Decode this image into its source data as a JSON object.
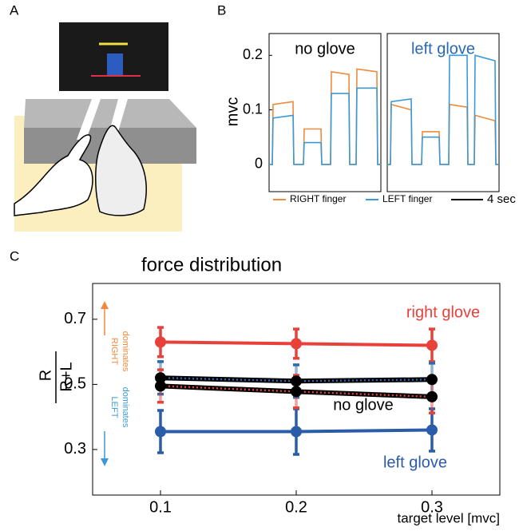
{
  "panel_labels": [
    "A",
    "B",
    "C"
  ],
  "chart_data": [
    {
      "type": "line",
      "title": "no glove",
      "title_color": "#000000",
      "y_label": "mvc",
      "x": [
        0,
        0.4,
        0.5,
        3.0,
        3.1,
        4.3,
        4.4,
        6.5,
        6.6,
        7.7,
        7.8,
        10.0,
        10.1,
        10.9,
        11.0,
        13.5,
        13.6,
        14.0
      ],
      "xlim": [
        0,
        14
      ],
      "ylim": [
        -0.05,
        0.24
      ],
      "yticks": [
        0,
        0.1,
        0.2
      ],
      "series": [
        {
          "name": "RIGHT finger",
          "color": "#f08a3c",
          "values": [
            0,
            0,
            0.11,
            0.115,
            0,
            0,
            0.065,
            0.065,
            0,
            0,
            0.17,
            0.165,
            0,
            0,
            0.175,
            0.17,
            0,
            0
          ]
        },
        {
          "name": "LEFT finger",
          "color": "#3b9ad6",
          "values": [
            0,
            0,
            0.085,
            0.09,
            0,
            0,
            0.04,
            0.04,
            0,
            0,
            0.13,
            0.13,
            0,
            0,
            0.14,
            0.14,
            0,
            0
          ]
        }
      ]
    },
    {
      "type": "line",
      "title": "left glove",
      "title_color": "#2a6ab3",
      "x": [
        0,
        0.4,
        0.5,
        3.0,
        3.1,
        4.3,
        4.4,
        6.5,
        6.6,
        7.7,
        7.8,
        10.0,
        10.1,
        10.9,
        11.0,
        13.5,
        13.6,
        14.0
      ],
      "xlim": [
        0,
        14
      ],
      "ylim": [
        -0.05,
        0.24
      ],
      "scalebar": {
        "length": 4,
        "label": "4 sec"
      },
      "series": [
        {
          "color": "#f08a3c",
          "values": [
            0,
            0,
            0.11,
            0.1,
            0,
            0,
            0.06,
            0.06,
            0,
            0,
            0.11,
            0.105,
            0,
            0,
            0.09,
            0.08,
            0,
            0
          ]
        },
        {
          "color": "#3b9ad6",
          "values": [
            0,
            0,
            0.115,
            0.12,
            0,
            0,
            0.05,
            0.05,
            0,
            0,
            0.2,
            0.2,
            0,
            0,
            0.2,
            0.19,
            0,
            0
          ]
        }
      ]
    },
    {
      "type": "errorline",
      "title": "force distribution",
      "y_label": [
        "R",
        "R+L"
      ],
      "x_label": "target level [mvc]",
      "annotation": "no glove",
      "side_notes": {
        "up": [
          "RIGHT",
          "dominates"
        ],
        "down": [
          "LEFT",
          "dominates"
        ]
      },
      "x": [
        0.1,
        0.2,
        0.3
      ],
      "xlim": [
        0.05,
        0.35
      ],
      "xticks": [
        0.1,
        0.2,
        0.3
      ],
      "ylim": [
        0.16,
        0.81
      ],
      "yticks": [
        0.3,
        0.5,
        0.7
      ],
      "series": [
        {
          "name": "right glove",
          "color": "#e8413a",
          "values": [
            0.63,
            0.625,
            0.62
          ],
          "errors": [
            0.045,
            0.045,
            0.05
          ]
        },
        {
          "name": "left glove",
          "color": "#2a5caa",
          "values": [
            0.355,
            0.355,
            0.36
          ],
          "errors": [
            0.065,
            0.07,
            0.065
          ]
        },
        {
          "color": "#2a6ab3",
          "style": "dotted",
          "values": [
            0.52,
            0.51,
            0.515
          ],
          "errors": [
            0.05,
            0.05,
            0.05
          ]
        },
        {
          "color": "#e8413a",
          "style": "dotted",
          "values": [
            0.495,
            0.478,
            0.462
          ],
          "errors": [
            0.05,
            0.05,
            0.05
          ]
        }
      ]
    }
  ]
}
